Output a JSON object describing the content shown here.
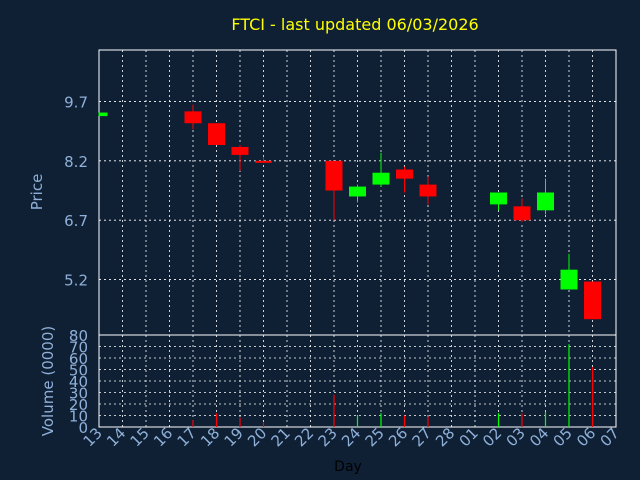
{
  "chart_data": {
    "type": "candlestick",
    "title": "FTCI - last updated 06/03/2026",
    "xlabel": "Day",
    "price_panel": {
      "ylabel": "Price",
      "yticks": [
        9.7,
        8.2,
        6.7,
        5.2
      ],
      "ylim": [
        3.8,
        11.0
      ]
    },
    "volume_panel": {
      "ylabel": "Volume (0000)",
      "yticks": [
        0,
        10,
        20,
        30,
        40,
        50,
        60,
        70,
        80
      ],
      "ylim": [
        0,
        80
      ]
    },
    "x_tick_labels": [
      "13",
      "14",
      "15",
      "16",
      "17",
      "18",
      "19",
      "20",
      "21",
      "22",
      "23",
      "24",
      "25",
      "26",
      "27",
      "28",
      "01",
      "02",
      "03",
      "04",
      "05",
      "06",
      "07"
    ],
    "candles": [
      {
        "day": "13",
        "open": 9.33,
        "close": 9.42,
        "high": 9.42,
        "low": 9.33,
        "volume": 0
      },
      {
        "day": "17",
        "open": 9.45,
        "close": 9.15,
        "high": 9.62,
        "low": 9.0,
        "volume": 6
      },
      {
        "day": "18",
        "open": 9.15,
        "close": 8.6,
        "high": 9.15,
        "low": 8.6,
        "volume": 12
      },
      {
        "day": "19",
        "open": 8.55,
        "close": 8.35,
        "high": 8.6,
        "low": 7.95,
        "volume": 8
      },
      {
        "day": "20",
        "open": 8.2,
        "close": 8.18,
        "high": 8.3,
        "low": 8.15,
        "volume": 4
      },
      {
        "day": "23",
        "open": 8.2,
        "close": 7.45,
        "high": 8.2,
        "low": 6.7,
        "volume": 28
      },
      {
        "day": "24",
        "open": 7.3,
        "close": 7.55,
        "high": 7.6,
        "low": 7.15,
        "volume": 10
      },
      {
        "day": "25",
        "open": 7.6,
        "close": 7.9,
        "high": 8.4,
        "low": 7.55,
        "volume": 12
      },
      {
        "day": "26",
        "open": 7.98,
        "close": 7.75,
        "high": 8.05,
        "low": 7.4,
        "volume": 10
      },
      {
        "day": "27",
        "open": 7.6,
        "close": 7.3,
        "high": 7.8,
        "low": 7.1,
        "volume": 9
      },
      {
        "day": "02",
        "open": 7.1,
        "close": 7.4,
        "high": 7.4,
        "low": 6.95,
        "volume": 12
      },
      {
        "day": "03",
        "open": 7.05,
        "close": 6.7,
        "high": 7.25,
        "low": 6.65,
        "volume": 12
      },
      {
        "day": "04",
        "open": 6.95,
        "close": 7.4,
        "high": 7.75,
        "low": 6.85,
        "volume": 13
      },
      {
        "day": "05",
        "open": 4.95,
        "close": 5.45,
        "high": 5.85,
        "low": 4.95,
        "volume": 72
      },
      {
        "day": "06",
        "open": 5.15,
        "close": 4.2,
        "high": 5.15,
        "low": 4.2,
        "volume": 52
      }
    ],
    "grid": true,
    "colors": {
      "background": "#0f2035",
      "up": "#00ff00",
      "down": "#ff0000",
      "grid": "#ffffff",
      "title": "#ffff00",
      "axis_text": "#8fb0d8"
    }
  }
}
